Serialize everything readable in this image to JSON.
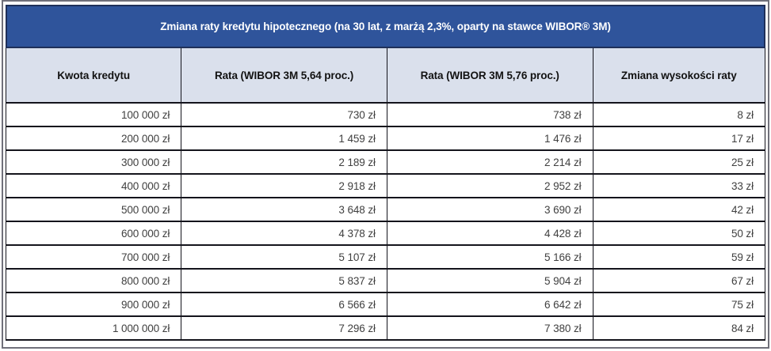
{
  "chart_data": {
    "type": "table",
    "title": "Zmiana raty kredytu hipotecznego (na 30 lat, z marżą 2,3%, oparty na stawce WIBOR® 3M)",
    "columns": [
      "Kwota kredytu",
      "Rata (WIBOR 3M 5,64 proc.)",
      "Rata (WIBOR 3M 5,76 proc.)",
      "Zmiana wysokości raty"
    ],
    "rows": [
      [
        "100 000 zł",
        "730 zł",
        "738 zł",
        "8 zł"
      ],
      [
        "200 000 zł",
        "1 459 zł",
        "1 476 zł",
        "17 zł"
      ],
      [
        "300 000 zł",
        "2 189 zł",
        "2 214 zł",
        "25 zł"
      ],
      [
        "400 000 zł",
        "2 918 zł",
        "2 952 zł",
        "33 zł"
      ],
      [
        "500 000 zł",
        "3 648 zł",
        "3 690 zł",
        "42 zł"
      ],
      [
        "600 000 zł",
        "4 378 zł",
        "4 428 zł",
        "50 zł"
      ],
      [
        "700 000 zł",
        "5 107 zł",
        "5 166 zł",
        "59 zł"
      ],
      [
        "800 000 zł",
        "5 837 zł",
        "5 904 zł",
        "67 zł"
      ],
      [
        "900 000 zł",
        "6 566 zł",
        "6 642 zł",
        "75 zł"
      ],
      [
        "1 000 000 zł",
        "7 296 zł",
        "7 380 zł",
        "84 zł"
      ]
    ],
    "series_numeric": {
      "loan_amount_pln": [
        100000,
        200000,
        300000,
        400000,
        500000,
        600000,
        700000,
        800000,
        900000,
        1000000
      ],
      "rata_wibor_5_64_pln": [
        730,
        1459,
        2189,
        2918,
        3648,
        4378,
        5107,
        5837,
        6566,
        7296
      ],
      "rata_wibor_5_76_pln": [
        738,
        1476,
        2214,
        2952,
        3690,
        4428,
        5166,
        5904,
        6642,
        7380
      ],
      "zmiana_raty_pln": [
        8,
        17,
        25,
        33,
        42,
        50,
        59,
        67,
        75,
        84
      ]
    }
  },
  "colors": {
    "title_bg": "#2F549B",
    "title_border": "#1F3059",
    "header_bg": "#DAE0EC",
    "cell_border": "#14141C",
    "outer_border": "#70707A",
    "data_text": "#404040"
  }
}
